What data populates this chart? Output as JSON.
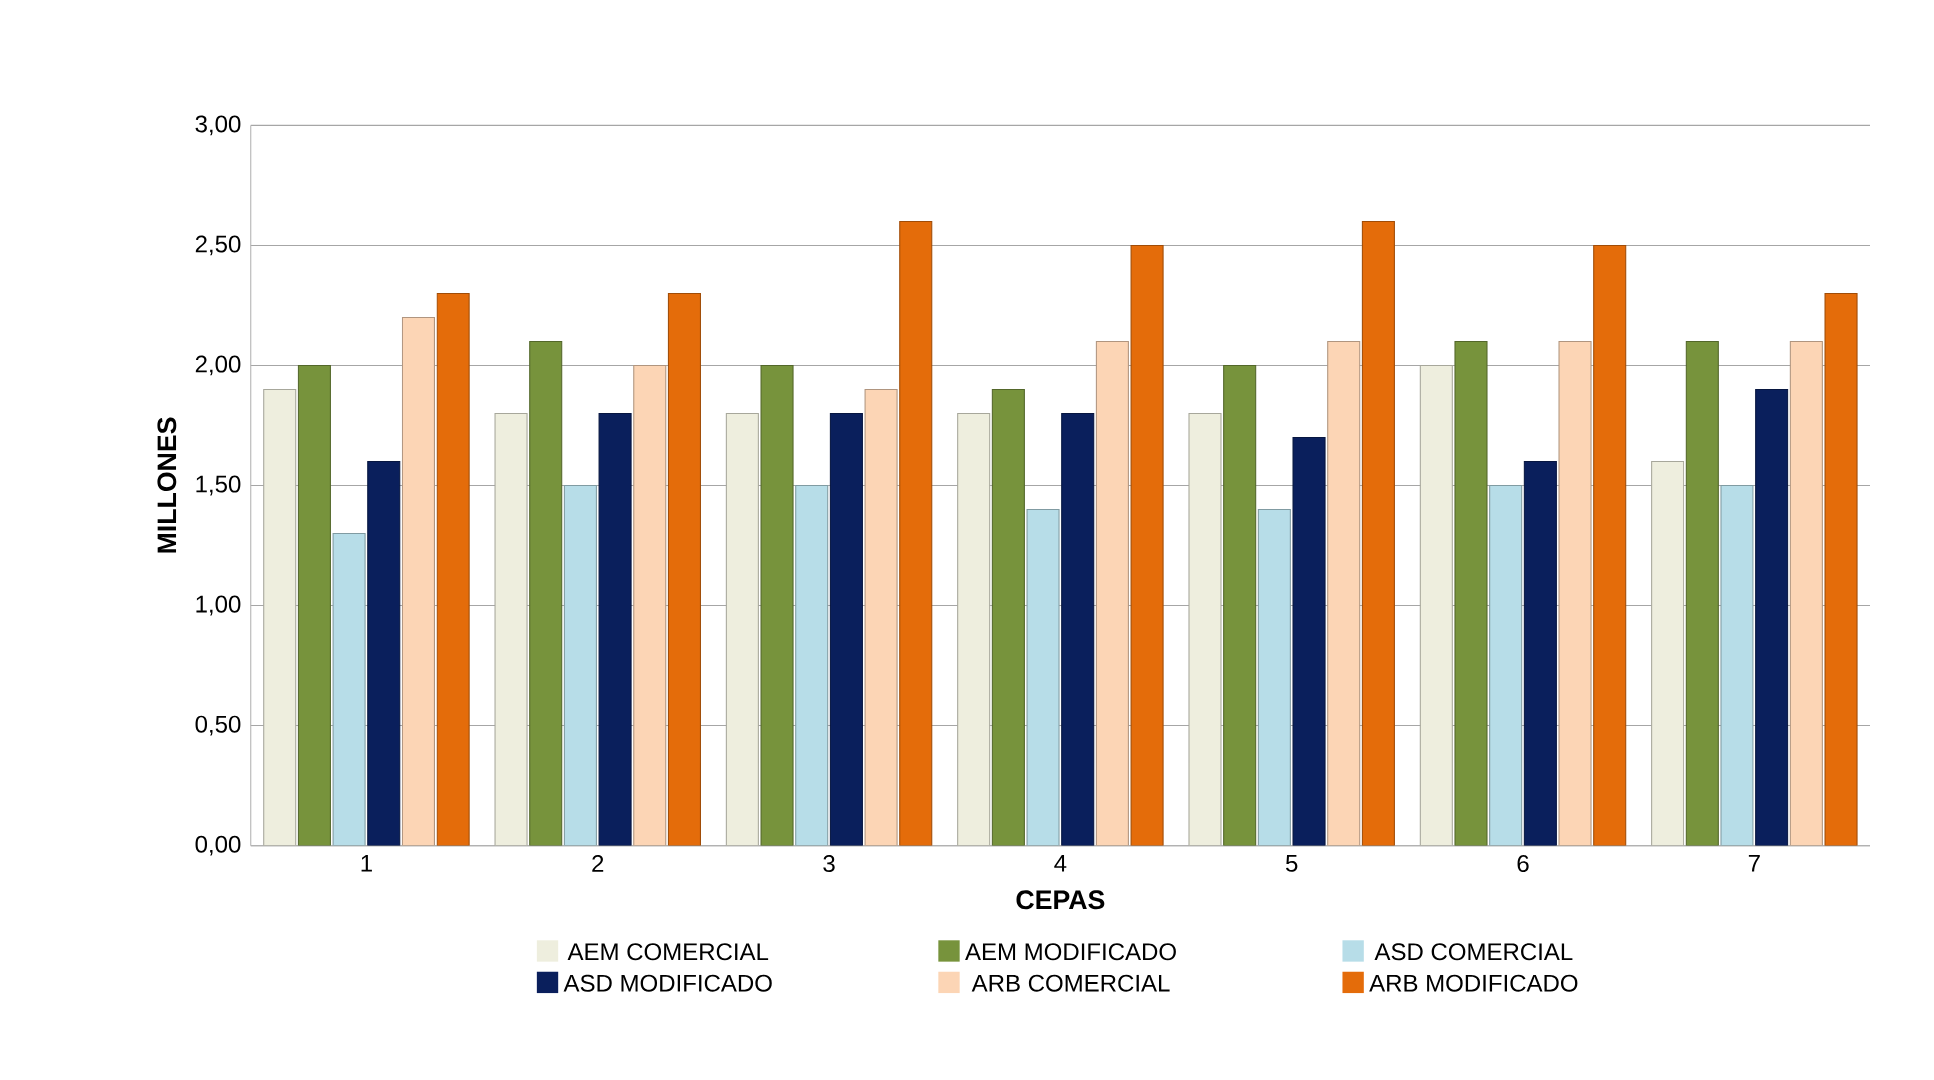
{
  "chart_data": {
    "type": "bar",
    "xlabel": "CEPAS",
    "ylabel": "MILLONES",
    "categories": [
      "1",
      "2",
      "3",
      "4",
      "5",
      "6",
      "7"
    ],
    "series": [
      {
        "name": "AEM COMERCIAL",
        "color": "#eeeede",
        "values": [
          1.9,
          1.8,
          1.8,
          1.8,
          1.8,
          2.0,
          1.6
        ]
      },
      {
        "name": "AEM MODIFICADO",
        "color": "#77933c",
        "values": [
          2.0,
          2.1,
          2.0,
          1.9,
          2.0,
          2.1,
          2.1
        ]
      },
      {
        "name": "ASD COMERCIAL",
        "color": "#b7dde8",
        "values": [
          1.3,
          1.5,
          1.5,
          1.4,
          1.4,
          1.5,
          1.5
        ]
      },
      {
        "name": "ASD MODIFICADO",
        "color": "#0a1f5c",
        "values": [
          1.6,
          1.8,
          1.8,
          1.8,
          1.7,
          1.6,
          1.9
        ]
      },
      {
        "name": "ARB COMERCIAL",
        "color": "#fcd5b5",
        "values": [
          2.2,
          2.0,
          1.9,
          2.1,
          2.1,
          2.1,
          2.1
        ]
      },
      {
        "name": "ARB MODIFICADO",
        "color": "#e46c0a",
        "values": [
          2.3,
          2.3,
          2.6,
          2.5,
          2.6,
          2.5,
          2.3
        ]
      }
    ],
    "ylim": [
      0,
      3
    ],
    "yticks": [
      {
        "value": 0,
        "label": "0,00"
      },
      {
        "value": 0.5,
        "label": "0,50"
      },
      {
        "value": 1,
        "label": "1,00"
      },
      {
        "value": 1.5,
        "label": "1,50"
      },
      {
        "value": 2,
        "label": "2,00"
      },
      {
        "value": 2.5,
        "label": "2,50"
      },
      {
        "value": 3,
        "label": "3,00"
      }
    ],
    "grid": "y",
    "legend": "bottom"
  }
}
